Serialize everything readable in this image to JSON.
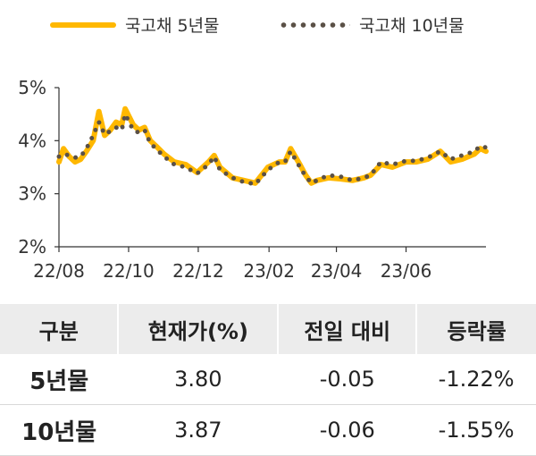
{
  "colors": {
    "series_5y": "#FFB800",
    "series_10y": "#5a5046",
    "header_bg": "#ececec"
  },
  "chart_data": {
    "type": "line",
    "x_ticks": [
      "22/08",
      "22/10",
      "22/12",
      "23/02",
      "23/04",
      "23/06"
    ],
    "y_ticks": [
      "2%",
      "3%",
      "4%",
      "5%"
    ],
    "ylim": [
      2,
      5
    ],
    "xlim": [
      "2022-08-01",
      "2023-08-10"
    ],
    "grid": false,
    "legend_position": "top",
    "series": [
      {
        "name": "국고채 5년물",
        "style": "solid",
        "x": [
          "2022-08-01",
          "2022-08-05",
          "2022-08-10",
          "2022-08-15",
          "2022-08-20",
          "2022-08-25",
          "2022-08-31",
          "2022-09-05",
          "2022-09-10",
          "2022-09-15",
          "2022-09-20",
          "2022-09-25",
          "2022-09-28",
          "2022-10-05",
          "2022-10-10",
          "2022-10-15",
          "2022-10-20",
          "2022-10-25",
          "2022-11-01",
          "2022-11-10",
          "2022-11-20",
          "2022-11-30",
          "2022-12-10",
          "2022-12-15",
          "2022-12-20",
          "2022-12-31",
          "2023-01-10",
          "2023-01-20",
          "2023-01-31",
          "2023-02-10",
          "2023-02-15",
          "2023-02-20",
          "2023-02-28",
          "2023-03-05",
          "2023-03-10",
          "2023-03-15",
          "2023-03-25",
          "2023-04-05",
          "2023-04-15",
          "2023-04-25",
          "2023-05-01",
          "2023-05-10",
          "2023-05-20",
          "2023-06-01",
          "2023-06-10",
          "2023-06-20",
          "2023-07-01",
          "2023-07-10",
          "2023-07-20",
          "2023-07-31",
          "2023-08-05",
          "2023-08-10"
        ],
        "values": [
          3.6,
          3.85,
          3.7,
          3.6,
          3.65,
          3.8,
          4.0,
          4.55,
          4.1,
          4.2,
          4.35,
          4.3,
          4.6,
          4.3,
          4.2,
          4.25,
          4.0,
          3.9,
          3.75,
          3.6,
          3.55,
          3.4,
          3.6,
          3.72,
          3.5,
          3.3,
          3.25,
          3.2,
          3.5,
          3.6,
          3.6,
          3.85,
          3.55,
          3.35,
          3.2,
          3.25,
          3.3,
          3.28,
          3.25,
          3.3,
          3.35,
          3.55,
          3.5,
          3.6,
          3.6,
          3.65,
          3.8,
          3.6,
          3.65,
          3.75,
          3.85,
          3.8
        ]
      },
      {
        "name": "국고채 10년물",
        "style": "dotted",
        "x": [
          "2022-08-01",
          "2022-08-05",
          "2022-08-10",
          "2022-08-15",
          "2022-08-20",
          "2022-08-25",
          "2022-08-31",
          "2022-09-05",
          "2022-09-10",
          "2022-09-15",
          "2022-09-20",
          "2022-09-25",
          "2022-09-28",
          "2022-10-05",
          "2022-10-10",
          "2022-10-15",
          "2022-10-20",
          "2022-10-25",
          "2022-11-01",
          "2022-11-10",
          "2022-11-20",
          "2022-11-30",
          "2022-12-10",
          "2022-12-15",
          "2022-12-20",
          "2022-12-31",
          "2023-01-10",
          "2023-01-20",
          "2023-01-31",
          "2023-02-10",
          "2023-02-15",
          "2023-02-20",
          "2023-02-28",
          "2023-03-05",
          "2023-03-10",
          "2023-03-15",
          "2023-03-25",
          "2023-04-05",
          "2023-04-15",
          "2023-04-25",
          "2023-05-01",
          "2023-05-10",
          "2023-05-20",
          "2023-06-01",
          "2023-06-10",
          "2023-06-20",
          "2023-07-01",
          "2023-07-10",
          "2023-07-20",
          "2023-07-31",
          "2023-08-05",
          "2023-08-10"
        ],
        "values": [
          3.7,
          3.75,
          3.72,
          3.68,
          3.7,
          3.85,
          4.1,
          4.35,
          4.12,
          4.18,
          4.25,
          4.2,
          4.5,
          4.2,
          4.15,
          4.2,
          3.95,
          3.85,
          3.7,
          3.55,
          3.5,
          3.38,
          3.55,
          3.7,
          3.45,
          3.3,
          3.22,
          3.18,
          3.45,
          3.6,
          3.6,
          3.8,
          3.5,
          3.33,
          3.2,
          3.25,
          3.35,
          3.32,
          3.25,
          3.3,
          3.35,
          3.6,
          3.55,
          3.62,
          3.62,
          3.68,
          3.8,
          3.65,
          3.72,
          3.8,
          3.9,
          3.87
        ]
      }
    ]
  },
  "table": {
    "headers": [
      "구분",
      "현재가(%)",
      "전일 대비",
      "등락률"
    ],
    "rows": [
      [
        "5년물",
        "3.80",
        "-0.05",
        "-1.22%"
      ],
      [
        "10년물",
        "3.87",
        "-0.06",
        "-1.55%"
      ]
    ]
  }
}
